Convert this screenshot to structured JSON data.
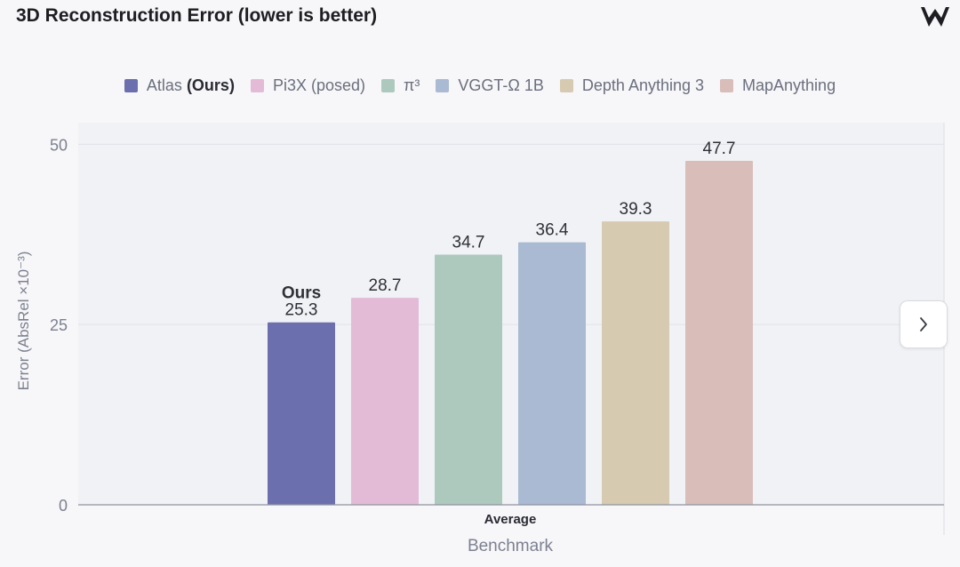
{
  "header": {
    "title": "3D Reconstruction Error (lower is better)"
  },
  "icons": {
    "logo": "brand-logo-icon",
    "next": "chevron-right-icon"
  },
  "chart_data": {
    "type": "bar",
    "title": "3D Reconstruction Error (lower is better)",
    "xlabel": "Benchmark",
    "ylabel": "Error (AbsRel ×10⁻³)",
    "categories": [
      "Average"
    ],
    "ylim": [
      0,
      53
    ],
    "yticks": [
      0,
      25,
      50
    ],
    "grid": true,
    "legend_position": "top-center",
    "series": [
      {
        "name": "Atlas (Ours)",
        "legend_plain": "Atlas ",
        "legend_bold": "(Ours)",
        "values": [
          25.3
        ],
        "color": "#6b6fae",
        "label": "25.3",
        "annotation": "Ours"
      },
      {
        "name": "Pi3X (posed)",
        "legend_plain": "Pi3X (posed)",
        "legend_bold": "",
        "values": [
          28.7
        ],
        "color": "#e3bbd7",
        "label": "28.7"
      },
      {
        "name": "π³",
        "legend_plain": "π³",
        "legend_bold": "",
        "values": [
          34.7
        ],
        "color": "#adc9bd",
        "label": "34.7"
      },
      {
        "name": "VGGT-Ω 1B",
        "legend_plain": "VGGT-Ω 1B",
        "legend_bold": "",
        "values": [
          36.4
        ],
        "color": "#a9bad2",
        "label": "36.4"
      },
      {
        "name": "Depth Anything 3",
        "legend_plain": "Depth Anything 3",
        "legend_bold": "",
        "values": [
          39.3
        ],
        "color": "#d6cab0",
        "label": "39.3"
      },
      {
        "name": "MapAnything",
        "legend_plain": "MapAnything",
        "legend_bold": "",
        "values": [
          47.7
        ],
        "color": "#d9bdb9",
        "label": "47.7"
      }
    ]
  }
}
